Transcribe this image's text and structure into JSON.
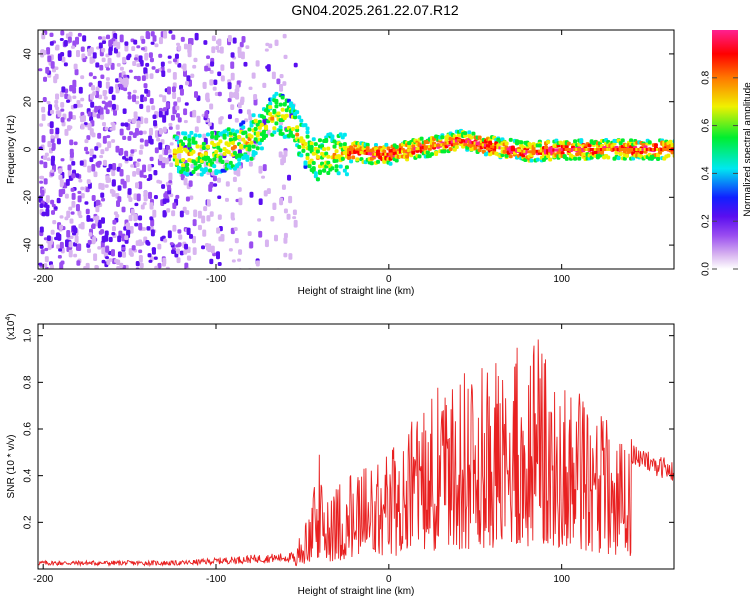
{
  "title": "GN04.2025.261.22.07.R12",
  "chart_data": [
    {
      "type": "heatmap",
      "name": "spectrogram",
      "xlabel": "Height of straight line (km)",
      "ylabel": "Frequency (Hz)",
      "xlim": [
        -203,
        165
      ],
      "ylim": [
        -50,
        50
      ],
      "xticks": [
        -200,
        -100,
        0,
        100
      ],
      "yticks": [
        -40,
        -20,
        0,
        20,
        40
      ],
      "colorbar": {
        "label": "Normalized spectral amplitude",
        "range": [
          0,
          1
        ],
        "ticks": [
          0.0,
          0.2,
          0.4,
          0.6,
          0.8
        ],
        "tick_labels": [
          "0.0",
          "0.2",
          "0.4",
          "0.6",
          "0.8"
        ],
        "colors": [
          "#ffffff",
          "#d8b4f0",
          "#9a4df0",
          "#5a0ef0",
          "#1020ff",
          "#00e8f0",
          "#00ee30",
          "#f0f000",
          "#ff7800",
          "#ff0000",
          "#ff2090"
        ]
      },
      "ridge": {
        "height_km": [
          -120,
          -100,
          -90,
          -80,
          -70,
          -65,
          -60,
          -55,
          -50,
          -45,
          -40,
          -35,
          -30,
          -20,
          -10,
          0,
          20,
          30,
          40,
          60,
          80,
          100,
          120,
          140,
          165
        ],
        "frequency_hz": [
          -2,
          -1,
          1,
          5,
          12,
          16,
          13,
          8,
          2,
          -3,
          -4,
          -2,
          -2,
          -1,
          -2,
          -2,
          1,
          2,
          4,
          1,
          -1,
          0,
          0,
          0,
          0
        ]
      }
    },
    {
      "type": "line",
      "name": "snr",
      "xlabel": "Height of straight line (km)",
      "ylabel": "SNR (10 * v/v)",
      "y_multiplier": "(x10",
      "y_multiplier_exp": "4",
      "y_multiplier_close": ")",
      "xlim": [
        -203,
        165
      ],
      "ylim": [
        0,
        1.05
      ],
      "xticks": [
        -200,
        -100,
        0,
        100
      ],
      "yticks": [
        0.2,
        0.4,
        0.6,
        0.8,
        1.0
      ],
      "ytick_labels": [
        "0.2",
        "0.4",
        "0.6",
        "0.8",
        "1.0"
      ],
      "color": "#e82020",
      "envelope": {
        "height_km": [
          -203,
          -120,
          -80,
          -55,
          -45,
          -40,
          -35,
          -25,
          -10,
          0,
          10,
          20,
          30,
          40,
          50,
          60,
          70,
          80,
          90,
          100,
          110,
          120,
          130,
          140,
          150,
          165
        ],
        "snr": [
          0.03,
          0.03,
          0.05,
          0.06,
          0.3,
          0.5,
          0.3,
          0.4,
          0.45,
          0.5,
          0.6,
          0.75,
          0.8,
          0.85,
          0.85,
          0.9,
          1.0,
          0.95,
          1.02,
          0.85,
          0.8,
          0.7,
          0.6,
          0.55,
          0.5,
          0.45
        ]
      }
    }
  ]
}
